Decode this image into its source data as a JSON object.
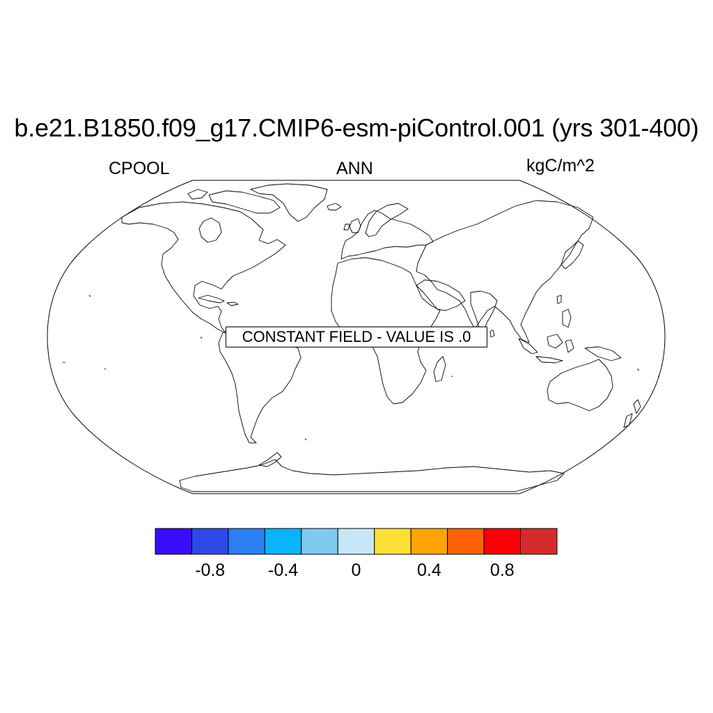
{
  "title": "b.e21.B1850.f09_g17.CMIP6-esm-piControl.001 (yrs 301-400)",
  "left_label": "CPOOL",
  "center_label": "ANN",
  "right_label": "kgC/m^2",
  "notice": "CONSTANT FIELD - VALUE IS .0",
  "projection": "Robinson",
  "colorbar": {
    "colors": [
      "#3a0dfc",
      "#2e48e8",
      "#2c7ff0",
      "#0bb3fb",
      "#7ecaf0",
      "#c8e6f7",
      "#fde035",
      "#fda405",
      "#fd6103",
      "#f90007",
      "#d52b2b"
    ],
    "tick_labels": [
      "-0.8",
      "-0.4",
      "0",
      "0.4",
      "0.8"
    ],
    "tick_values": [
      -0.8,
      -0.4,
      0,
      0.4,
      0.8
    ],
    "levels": [
      -1.0,
      -0.8,
      -0.6,
      -0.4,
      -0.2,
      0,
      0.2,
      0.4,
      0.6,
      0.8,
      1.0
    ]
  }
}
